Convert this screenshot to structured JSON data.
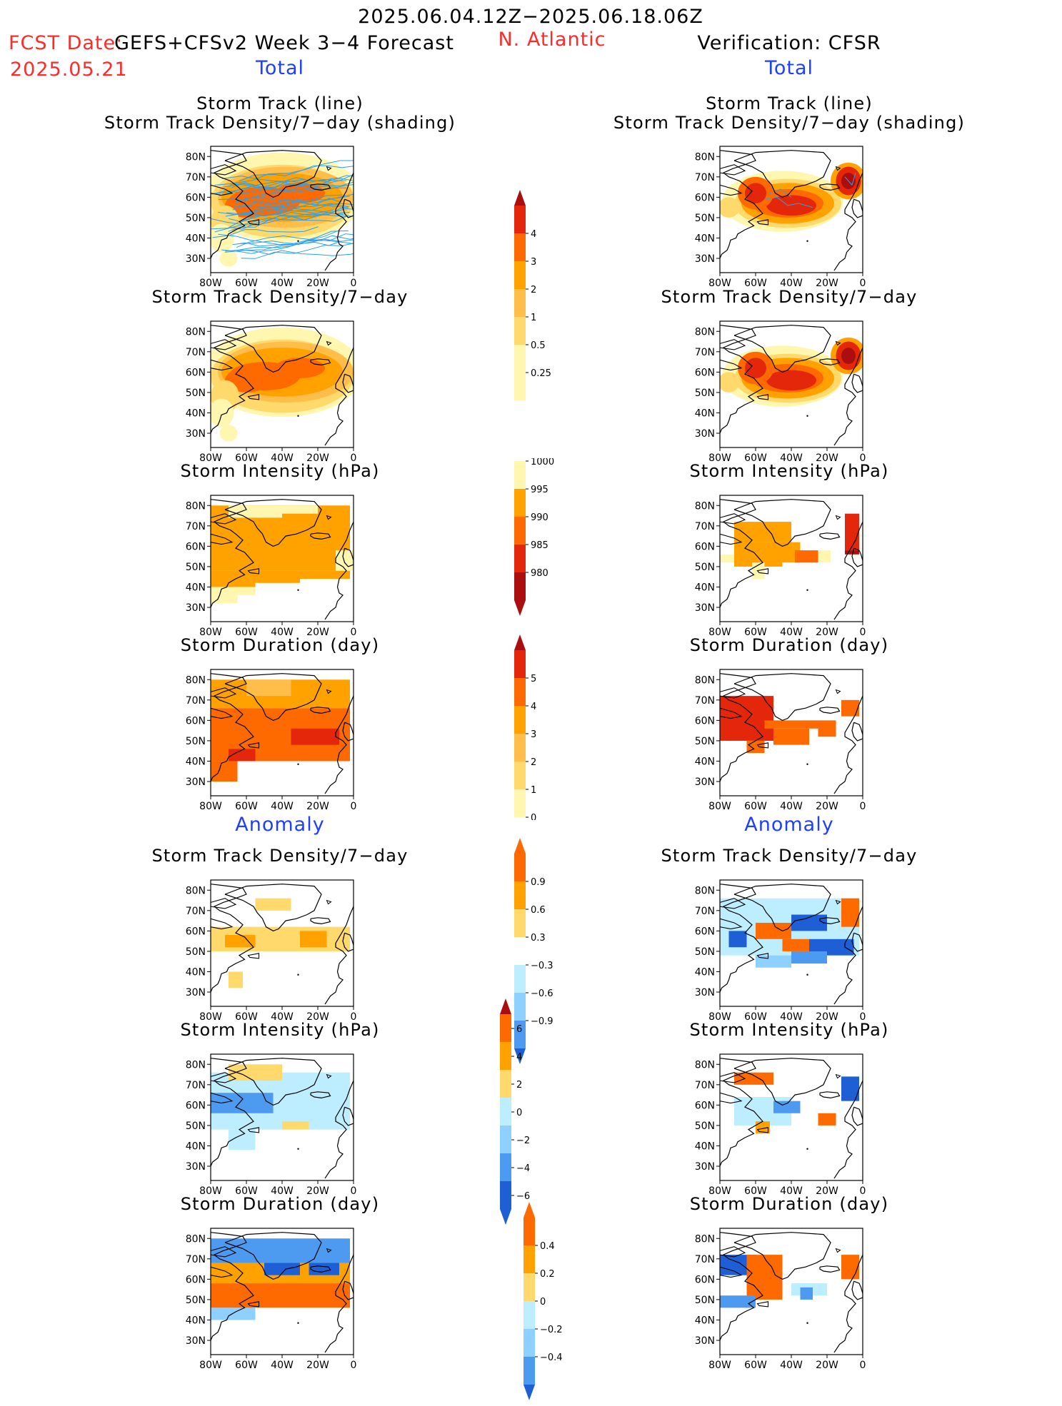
{
  "header": {
    "period": "2025.06.04.12Z−2025.06.18.06Z",
    "fcst_label": "FCST Date:",
    "fcst_date": "2025.05.21",
    "model": "GEFS+CFSv2 Week 3−4 Forecast",
    "region": "N. Atlantic",
    "verification": "Verification: CFSR",
    "total": "Total",
    "anomaly": "Anomaly"
  },
  "titles": {
    "track_line": "Storm Track (line)",
    "track_shading": "Storm Track Density/7−day (shading)",
    "density": "Storm Track Density/7−day",
    "intensity": "Storm Intensity (hPa)",
    "duration": "Storm Duration (day)"
  },
  "axes": {
    "lat_labels": [
      "80N",
      "70N",
      "60N",
      "50N",
      "40N",
      "30N"
    ],
    "lon_labels": [
      "80W",
      "60W",
      "40W",
      "20W",
      "0"
    ]
  },
  "colorbars": {
    "density_total": [
      "4",
      "3",
      "2",
      "1",
      "0.5",
      "0.25"
    ],
    "intensity_total": [
      "1000",
      "995",
      "990",
      "985",
      "980"
    ],
    "duration_total": [
      "5",
      "4",
      "3",
      "2",
      "1",
      "0"
    ],
    "density_anom": [
      "0.9",
      "0.6",
      "0.3",
      "−0.3",
      "−0.6",
      "−0.9"
    ],
    "intensity_anom": [
      "6",
      "4",
      "2",
      "0",
      "−2",
      "−4",
      "−6"
    ],
    "duration_anom": [
      "0.4",
      "0.2",
      "0",
      "−0.2",
      "−0.4"
    ]
  },
  "colors": {
    "pale_yellow": "#fff6b0",
    "yellow": "#ffd96b",
    "light_orange": "#ffbe4a",
    "orange": "#ffa200",
    "dark_orange": "#ff6a00",
    "red": "#e4260b",
    "dark_red": "#aa0e0e",
    "pale_blue": "#bdeeff",
    "light_blue": "#8ed0ff",
    "blue": "#4c9bf0",
    "dark_blue": "#1e5fd6",
    "track_line": "#2aa0ee"
  }
}
